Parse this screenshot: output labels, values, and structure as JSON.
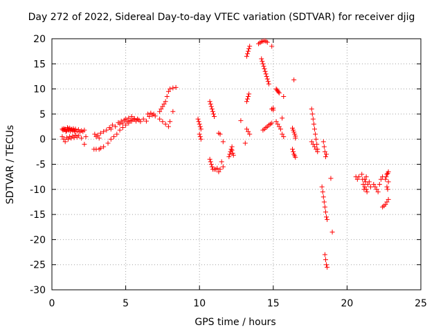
{
  "chart_data": {
    "type": "scatter",
    "title": "Day 272 of 2022, Sidereal Day-to-day VTEC variation (SDTVAR) for receiver djig",
    "xlabel": "GPS time / hours",
    "ylabel": "SDTVAR / TECUs",
    "xlim": [
      0,
      25
    ],
    "ylim": [
      -30,
      20
    ],
    "xticks": [
      0,
      5,
      10,
      15,
      20,
      25
    ],
    "yticks": [
      -30,
      -25,
      -20,
      -15,
      -10,
      -5,
      0,
      5,
      10,
      15,
      20
    ],
    "grid": true,
    "marker": "+",
    "color": "#ff0000",
    "series": [
      {
        "name": "SDTVAR",
        "x": [
          0.7,
          0.75,
          0.8,
          0.85,
          0.9,
          0.95,
          1.0,
          1.05,
          1.1,
          1.15,
          1.2,
          1.25,
          1.3,
          1.35,
          1.4,
          1.45,
          1.5,
          1.55,
          1.6,
          1.7,
          1.8,
          1.9,
          2.0,
          2.1,
          2.2,
          0.7,
          0.8,
          0.9,
          1.0,
          1.1,
          1.2,
          1.3,
          1.4,
          1.5,
          1.6,
          1.7,
          1.8,
          2.0,
          2.2,
          2.3,
          2.9,
          3.0,
          3.1,
          3.2,
          3.3,
          2.85,
          3.0,
          3.2,
          3.3,
          3.5,
          3.7,
          3.9,
          4.0,
          4.1,
          4.3,
          4.5,
          4.6,
          4.7,
          4.8,
          4.9,
          5.0,
          5.1,
          5.2,
          5.3,
          5.4,
          5.5,
          5.6,
          5.7,
          5.8,
          5.9,
          6.0,
          6.2,
          6.4,
          3.5,
          3.8,
          4.0,
          4.2,
          4.4,
          4.6,
          4.8,
          5.0,
          5.2,
          5.4,
          5.6,
          5.8,
          6.5,
          6.6,
          6.7,
          6.8,
          6.9,
          7.0,
          7.3,
          7.4,
          7.5,
          7.6,
          7.7,
          7.8,
          7.9,
          8.0,
          8.2,
          8.4,
          7.3,
          7.5,
          7.7,
          7.9,
          8.0,
          8.2,
          9.9,
          9.95,
          10.0,
          10.05,
          10.1,
          10.0,
          10.05,
          10.1,
          10.7,
          10.75,
          10.8,
          10.85,
          10.9,
          10.95,
          11.0,
          10.7,
          10.75,
          10.8,
          10.85,
          10.9,
          11.0,
          11.1,
          11.2,
          11.3,
          11.4,
          11.5,
          11.6,
          11.3,
          11.4,
          11.6,
          12.0,
          12.05,
          12.1,
          12.15,
          12.2,
          12.25,
          12.3,
          12.2,
          12.8,
          13.1,
          13.2,
          13.25,
          13.3,
          13.35,
          13.2,
          13.25,
          13.3,
          13.35,
          13.4,
          13.2,
          13.3,
          13.4,
          14.0,
          14.1,
          14.2,
          14.3,
          14.4,
          14.5,
          14.6,
          14.2,
          14.25,
          14.3,
          14.35,
          14.4,
          14.45,
          14.5,
          14.55,
          14.6,
          14.65,
          14.7,
          14.3,
          14.4,
          14.5,
          14.6,
          14.7,
          14.8,
          14.9,
          14.9,
          15.0,
          15.0,
          14.9,
          15.2,
          15.25,
          15.3,
          15.35,
          15.4,
          15.2,
          15.3,
          15.4,
          15.5,
          15.6,
          15.7,
          15.6,
          15.7,
          16.3,
          16.35,
          16.4,
          16.45,
          16.5,
          16.5,
          16.3,
          16.35,
          16.4,
          16.45,
          16.5,
          16.4,
          17.6,
          17.65,
          17.7,
          17.75,
          17.8,
          17.85,
          17.9,
          17.95,
          18.0,
          17.6,
          17.7,
          17.8,
          17.9,
          18.0,
          18.4,
          18.45,
          18.5,
          18.55,
          18.6,
          18.3,
          18.35,
          18.4,
          18.45,
          18.5,
          18.55,
          18.6,
          18.65,
          18.5,
          18.55,
          18.6,
          18.65,
          18.9,
          19.0,
          20.6,
          20.7,
          20.8,
          21.0,
          21.05,
          21.1,
          21.15,
          21.2,
          21.25,
          21.3,
          21.35,
          21.4,
          21.2,
          21.3,
          21.5,
          21.6,
          21.8,
          21.9,
          22.0,
          22.1,
          22.2,
          22.3,
          22.4,
          22.4,
          22.5,
          22.6,
          22.7,
          22.8,
          22.6,
          22.65,
          22.7,
          22.75,
          22.8,
          22.7,
          22.75,
          22.8
        ],
        "y": [
          2.0,
          1.8,
          2.1,
          1.9,
          2.0,
          1.5,
          1.7,
          2.3,
          2.1,
          1.8,
          2.2,
          1.6,
          2.0,
          1.9,
          1.7,
          2.1,
          1.8,
          1.5,
          2.0,
          1.6,
          1.9,
          1.4,
          1.7,
          1.5,
          1.8,
          0.5,
          0.0,
          -0.5,
          0.3,
          0.0,
          0.5,
          0.2,
          0.6,
          0.3,
          0.8,
          0.4,
          0.7,
          0.2,
          -1.0,
          0.5,
          1.0,
          0.5,
          0.8,
          0.2,
          1.2,
          -2.0,
          -2.0,
          -2.0,
          -1.8,
          1.5,
          1.8,
          2.3,
          2.0,
          2.8,
          2.5,
          3.3,
          3.0,
          3.6,
          3.2,
          3.8,
          4.0,
          3.5,
          4.2,
          3.7,
          4.5,
          3.9,
          4.1,
          3.6,
          4.0,
          3.8,
          3.5,
          4.0,
          3.6,
          -1.5,
          -0.8,
          0.0,
          0.5,
          1.0,
          1.8,
          2.3,
          2.8,
          3.2,
          3.6,
          3.9,
          4.0,
          5.0,
          4.5,
          5.2,
          4.8,
          5.0,
          4.6,
          5.5,
          6.0,
          6.5,
          7.0,
          7.5,
          8.5,
          9.5,
          10.0,
          10.2,
          10.3,
          4.0,
          3.5,
          3.0,
          2.5,
          3.5,
          5.5,
          4.0,
          3.5,
          3.0,
          2.5,
          2.0,
          1.0,
          0.5,
          0.0,
          7.5,
          7.0,
          6.5,
          6.0,
          5.5,
          5.0,
          4.5,
          -4.0,
          -4.5,
          -5.0,
          -5.5,
          -6.0,
          -6.0,
          -6.0,
          -5.8,
          -6.5,
          -6.0,
          -4.5,
          -5.5,
          1.2,
          1.0,
          -0.5,
          -3.5,
          -3.0,
          -2.5,
          -2.0,
          -1.5,
          -2.8,
          -3.2,
          -2.2,
          3.7,
          -0.8,
          7.5,
          8.0,
          8.5,
          9.0,
          16.5,
          17.0,
          17.5,
          18.0,
          18.5,
          2.0,
          1.5,
          1.0,
          19.0,
          19.2,
          19.4,
          19.5,
          19.6,
          19.5,
          19.3,
          16.0,
          15.5,
          15.0,
          14.5,
          14.0,
          13.5,
          13.0,
          12.5,
          12.0,
          11.5,
          11.0,
          1.8,
          2.0,
          2.3,
          2.5,
          2.8,
          3.0,
          3.2,
          6.0,
          6.2,
          5.8,
          18.5,
          10.0,
          9.8,
          9.6,
          9.4,
          9.2,
          3.5,
          3.0,
          2.5,
          2.0,
          1.0,
          0.5,
          4.2,
          8.5,
          2.2,
          1.8,
          1.4,
          1.0,
          0.6,
          0.2,
          -2.0,
          -2.5,
          -3.0,
          -3.3,
          -3.6,
          11.8,
          6.0,
          5.0,
          4.0,
          3.0,
          2.0,
          1.0,
          0.0,
          -1.0,
          -2.0,
          -0.5,
          -1.0,
          -1.5,
          -2.0,
          -2.5,
          -0.5,
          -1.5,
          -2.5,
          -3.5,
          -3.0,
          -9.5,
          -10.5,
          -11.5,
          -12.5,
          -13.5,
          -14.5,
          -15.5,
          -16.0,
          -23.0,
          -24.0,
          -25.0,
          -25.5,
          -7.8,
          -18.5,
          -7.5,
          -8.0,
          -7.5,
          -7.0,
          -8.0,
          -9.0,
          -10.0,
          -9.5,
          -8.5,
          -7.5,
          -10.5,
          -9.0,
          -8.0,
          -10.0,
          -8.5,
          -9.5,
          -9.0,
          -9.5,
          -10.0,
          -10.5,
          -9.0,
          -8.0,
          -7.5,
          -13.5,
          -13.3,
          -13.0,
          -12.5,
          -12.0,
          -8.0,
          -7.5,
          -7.0,
          -6.8,
          -6.5,
          -9.5,
          -10.0,
          -8.5
        ]
      }
    ]
  }
}
